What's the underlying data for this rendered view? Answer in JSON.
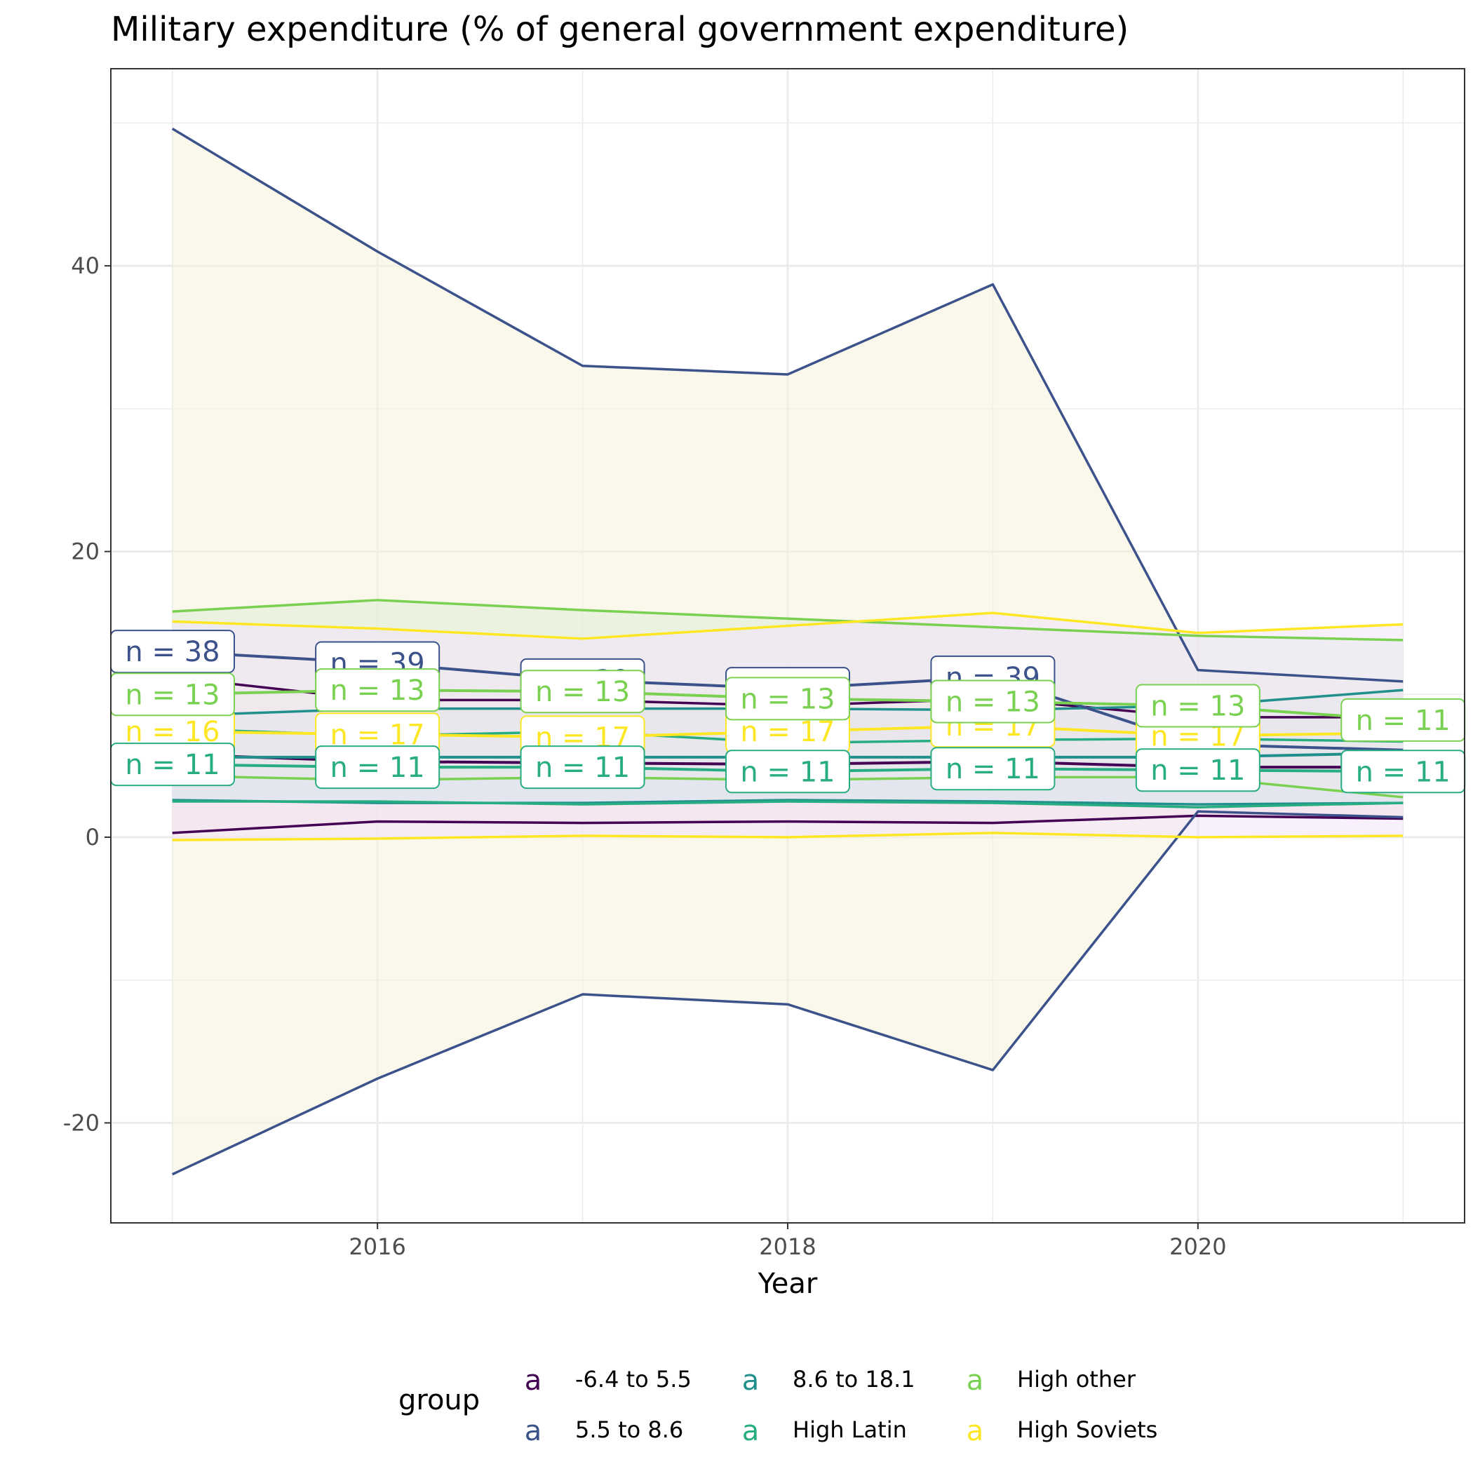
{
  "chart_data": {
    "type": "line",
    "title": "Military expenditure (% of general government expenditure)",
    "xlabel": "Year",
    "ylabel": "",
    "x_ticks": [
      2016,
      2018,
      2020
    ],
    "y_ticks": [
      -20,
      0,
      20,
      40
    ],
    "xlim": [
      2014.7,
      2021.3
    ],
    "ylim": [
      -27,
      53.8
    ],
    "grid": true,
    "legend_title": "group",
    "legend_position": "bottom",
    "x": [
      2015,
      2016,
      2017,
      2018,
      2019,
      2020,
      2021
    ],
    "series": [
      {
        "name": "-6.4 to 5.5",
        "color": "#440154",
        "fill": "#f6cad0",
        "mean": [
          5.8,
          5.3,
          5.2,
          5.1,
          5.3,
          4.9,
          4.9
        ],
        "upper": [
          11.2,
          9.6,
          9.6,
          9.2,
          9.7,
          8.4,
          8.4
        ],
        "lower": [
          0.3,
          1.1,
          1.0,
          1.1,
          1.0,
          1.5,
          1.3
        ],
        "labels": [
          "",
          "",
          "",
          "",
          "",
          "",
          ""
        ]
      },
      {
        "name": "5.5 to 8.6",
        "color": "#3b528b",
        "fill": "#f5f0da",
        "mean": [
          13.0,
          12.2,
          11.0,
          10.4,
          11.2,
          6.5,
          6.1
        ],
        "upper": [
          49.6,
          41.0,
          33.0,
          32.4,
          38.7,
          11.7,
          10.9
        ],
        "lower": [
          -23.6,
          -16.9,
          -11.0,
          -11.7,
          -16.3,
          1.8,
          1.4
        ],
        "labels": [
          "n = 38",
          "n = 39",
          "n = 39",
          "n = 39",
          "n = 39",
          "",
          ""
        ]
      },
      {
        "name": "8.6 to 18.1",
        "color": "#21908c",
        "fill": "#c9e6e4",
        "mean": [
          5.6,
          5.6,
          5.6,
          5.6,
          5.6,
          5.6,
          5.9
        ],
        "upper": [
          8.5,
          9.0,
          9.0,
          9.0,
          8.9,
          9.2,
          10.3
        ],
        "lower": [
          2.6,
          2.4,
          2.4,
          2.6,
          2.5,
          2.3,
          2.4
        ],
        "labels": [
          "",
          "",
          "",
          "",
          "",
          "",
          ""
        ]
      },
      {
        "name": "High Latin",
        "color": "#27ad81",
        "fill": "#c9e8dc",
        "mean": [
          5.1,
          4.9,
          4.9,
          4.6,
          4.8,
          4.7,
          4.6
        ],
        "upper": [
          7.6,
          7.1,
          7.4,
          6.6,
          6.8,
          6.9,
          6.7
        ],
        "lower": [
          2.5,
          2.5,
          2.3,
          2.5,
          2.4,
          2.1,
          2.4
        ],
        "labels": [
          "n = 11",
          "n = 11",
          "n = 11",
          "n = 11",
          "n = 11",
          "n = 11",
          "n = 11"
        ]
      },
      {
        "name": "High other",
        "color": "#7ad151",
        "fill": "#dfeed6",
        "mean": [
          10.0,
          10.3,
          10.2,
          9.7,
          9.5,
          9.2,
          8.2
        ],
        "upper": [
          15.8,
          16.6,
          15.9,
          15.3,
          14.7,
          14.1,
          13.8
        ],
        "lower": [
          4.3,
          4.0,
          4.2,
          4.0,
          4.2,
          4.2,
          2.8
        ],
        "labels": [
          "n = 13",
          "n = 13",
          "n = 13",
          "n = 13",
          "n = 13",
          "n = 13",
          "n = 11"
        ]
      },
      {
        "name": "High Soviets",
        "color": "#fde725",
        "fill": "#f2e3fb",
        "mean": [
          7.4,
          7.2,
          7.0,
          7.4,
          7.8,
          7.1,
          7.3
        ],
        "upper": [
          15.1,
          14.6,
          13.9,
          14.8,
          15.7,
          14.3,
          14.9
        ],
        "lower": [
          -0.2,
          -0.1,
          0.1,
          0.0,
          0.3,
          0.0,
          0.1
        ],
        "labels": [
          "n = 16",
          "n = 17",
          "n = 17",
          "n = 17",
          "n = 17",
          "n = 17",
          ""
        ]
      }
    ]
  }
}
